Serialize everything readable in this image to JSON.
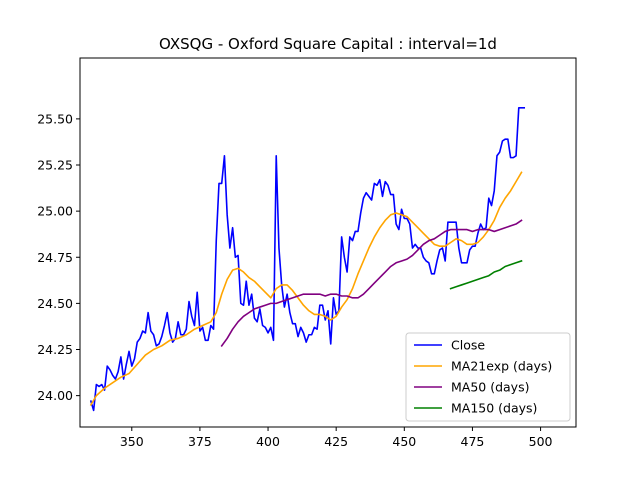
{
  "chart_data": {
    "type": "line",
    "title": "OXSQG - Oxford Square Capital : interval=1d",
    "xlabel": "",
    "ylabel": "",
    "xlim": [
      331,
      513
    ],
    "ylim": [
      23.83,
      25.83
    ],
    "xticks": [
      350,
      375,
      400,
      425,
      450,
      475,
      500
    ],
    "yticks": [
      24.0,
      24.25,
      24.5,
      24.75,
      25.0,
      25.25,
      25.5
    ],
    "ytick_labels": [
      "24.00",
      "24.25",
      "24.50",
      "24.75",
      "25.00",
      "25.25",
      "25.50"
    ],
    "grid": false,
    "legend_position": "lower-right",
    "series": [
      {
        "name": "Close",
        "color": "#0000ff",
        "points": [
          [
            335,
            23.97
          ],
          [
            336,
            23.92
          ],
          [
            337,
            24.06
          ],
          [
            338,
            24.05
          ],
          [
            339,
            24.06
          ],
          [
            340,
            24.03
          ],
          [
            341,
            24.16
          ],
          [
            342,
            24.14
          ],
          [
            343,
            24.11
          ],
          [
            344,
            24.09
          ],
          [
            345,
            24.13
          ],
          [
            346,
            24.21
          ],
          [
            347,
            24.09
          ],
          [
            348,
            24.17
          ],
          [
            349,
            24.24
          ],
          [
            350,
            24.16
          ],
          [
            351,
            24.2
          ],
          [
            352,
            24.29
          ],
          [
            353,
            24.31
          ],
          [
            354,
            24.35
          ],
          [
            355,
            24.34
          ],
          [
            356,
            24.45
          ],
          [
            357,
            24.35
          ],
          [
            358,
            24.33
          ],
          [
            359,
            24.27
          ],
          [
            360,
            24.28
          ],
          [
            361,
            24.32
          ],
          [
            362,
            24.38
          ],
          [
            363,
            24.45
          ],
          [
            364,
            24.34
          ],
          [
            365,
            24.29
          ],
          [
            366,
            24.31
          ],
          [
            367,
            24.4
          ],
          [
            368,
            24.33
          ],
          [
            369,
            24.33
          ],
          [
            370,
            24.36
          ],
          [
            371,
            24.51
          ],
          [
            372,
            24.43
          ],
          [
            373,
            24.38
          ],
          [
            374,
            24.56
          ],
          [
            375,
            24.35
          ],
          [
            376,
            24.37
          ],
          [
            377,
            24.3
          ],
          [
            378,
            24.3
          ],
          [
            379,
            24.38
          ],
          [
            380,
            24.36
          ],
          [
            381,
            24.84
          ],
          [
            382,
            25.15
          ],
          [
            383,
            25.15
          ],
          [
            384,
            25.3
          ],
          [
            385,
            24.98
          ],
          [
            386,
            24.8
          ],
          [
            387,
            24.91
          ],
          [
            388,
            24.75
          ],
          [
            389,
            24.76
          ],
          [
            390,
            24.5
          ],
          [
            391,
            24.49
          ],
          [
            392,
            24.62
          ],
          [
            393,
            24.49
          ],
          [
            394,
            24.55
          ],
          [
            395,
            24.42
          ],
          [
            396,
            24.4
          ],
          [
            397,
            24.47
          ],
          [
            398,
            24.38
          ],
          [
            399,
            24.37
          ],
          [
            400,
            24.34
          ],
          [
            401,
            24.37
          ],
          [
            402,
            24.3
          ],
          [
            403,
            25.3
          ],
          [
            404,
            24.8
          ],
          [
            405,
            24.6
          ],
          [
            406,
            24.48
          ],
          [
            407,
            24.55
          ],
          [
            408,
            24.45
          ],
          [
            409,
            24.39
          ],
          [
            410,
            24.39
          ],
          [
            411,
            24.32
          ],
          [
            412,
            24.37
          ],
          [
            413,
            24.34
          ],
          [
            414,
            24.29
          ],
          [
            415,
            24.33
          ],
          [
            416,
            24.33
          ],
          [
            417,
            24.37
          ],
          [
            418,
            24.36
          ],
          [
            419,
            24.49
          ],
          [
            420,
            24.49
          ],
          [
            421,
            24.41
          ],
          [
            422,
            24.46
          ],
          [
            423,
            24.28
          ],
          [
            424,
            24.53
          ],
          [
            425,
            24.44
          ],
          [
            426,
            24.46
          ],
          [
            427,
            24.86
          ],
          [
            428,
            24.75
          ],
          [
            429,
            24.67
          ],
          [
            430,
            24.86
          ],
          [
            431,
            24.84
          ],
          [
            432,
            24.89
          ],
          [
            433,
            24.89
          ],
          [
            434,
            24.99
          ],
          [
            435,
            25.07
          ],
          [
            436,
            25.1
          ],
          [
            437,
            25.08
          ],
          [
            438,
            25.06
          ],
          [
            439,
            25.15
          ],
          [
            440,
            25.14
          ],
          [
            441,
            25.17
          ],
          [
            442,
            25.08
          ],
          [
            443,
            25.16
          ],
          [
            444,
            25.14
          ],
          [
            445,
            25.09
          ],
          [
            446,
            25.09
          ],
          [
            447,
            24.93
          ],
          [
            448,
            24.9
          ],
          [
            449,
            25.01
          ],
          [
            450,
            24.96
          ],
          [
            451,
            24.96
          ],
          [
            452,
            24.93
          ],
          [
            453,
            24.8
          ],
          [
            454,
            24.82
          ],
          [
            455,
            24.8
          ],
          [
            456,
            24.8
          ],
          [
            457,
            24.75
          ],
          [
            458,
            24.73
          ],
          [
            459,
            24.72
          ],
          [
            460,
            24.66
          ],
          [
            461,
            24.66
          ],
          [
            462,
            24.73
          ],
          [
            463,
            24.79
          ],
          [
            464,
            24.8
          ],
          [
            465,
            24.73
          ],
          [
            466,
            24.94
          ],
          [
            467,
            24.94
          ],
          [
            468,
            24.94
          ],
          [
            469,
            24.94
          ],
          [
            470,
            24.8
          ],
          [
            471,
            24.72
          ],
          [
            472,
            24.72
          ],
          [
            473,
            24.72
          ],
          [
            474,
            24.79
          ],
          [
            475,
            24.81
          ],
          [
            476,
            24.81
          ],
          [
            477,
            24.88
          ],
          [
            478,
            24.93
          ],
          [
            479,
            24.9
          ],
          [
            480,
            24.91
          ],
          [
            481,
            25.07
          ],
          [
            482,
            25.03
          ],
          [
            483,
            25.11
          ],
          [
            484,
            25.3
          ],
          [
            485,
            25.32
          ],
          [
            486,
            25.38
          ],
          [
            487,
            25.39
          ],
          [
            488,
            25.39
          ],
          [
            489,
            25.29
          ],
          [
            490,
            25.29
          ],
          [
            491,
            25.3
          ],
          [
            492,
            25.56
          ],
          [
            493,
            25.56
          ],
          [
            494,
            25.56
          ]
        ]
      },
      {
        "name": "MA21exp (days)",
        "color": "#ffa500",
        "points": [
          [
            335,
            23.95
          ],
          [
            337,
            24.0
          ],
          [
            340,
            24.04
          ],
          [
            343,
            24.07
          ],
          [
            346,
            24.1
          ],
          [
            349,
            24.12
          ],
          [
            352,
            24.17
          ],
          [
            355,
            24.22
          ],
          [
            358,
            24.25
          ],
          [
            361,
            24.27
          ],
          [
            364,
            24.3
          ],
          [
            367,
            24.31
          ],
          [
            370,
            24.33
          ],
          [
            373,
            24.36
          ],
          [
            376,
            24.38
          ],
          [
            379,
            24.4
          ],
          [
            381,
            24.45
          ],
          [
            383,
            24.55
          ],
          [
            385,
            24.63
          ],
          [
            387,
            24.68
          ],
          [
            389,
            24.69
          ],
          [
            391,
            24.67
          ],
          [
            393,
            24.64
          ],
          [
            395,
            24.62
          ],
          [
            397,
            24.59
          ],
          [
            399,
            24.56
          ],
          [
            401,
            24.53
          ],
          [
            403,
            24.58
          ],
          [
            405,
            24.6
          ],
          [
            407,
            24.6
          ],
          [
            409,
            24.57
          ],
          [
            411,
            24.53
          ],
          [
            413,
            24.49
          ],
          [
            415,
            24.46
          ],
          [
            417,
            24.44
          ],
          [
            419,
            24.44
          ],
          [
            421,
            24.43
          ],
          [
            423,
            24.41
          ],
          [
            425,
            24.43
          ],
          [
            427,
            24.48
          ],
          [
            429,
            24.52
          ],
          [
            431,
            24.58
          ],
          [
            433,
            24.66
          ],
          [
            435,
            24.73
          ],
          [
            437,
            24.8
          ],
          [
            439,
            24.86
          ],
          [
            441,
            24.91
          ],
          [
            443,
            24.95
          ],
          [
            445,
            24.98
          ],
          [
            447,
            24.99
          ],
          [
            449,
            24.98
          ],
          [
            451,
            24.97
          ],
          [
            453,
            24.94
          ],
          [
            455,
            24.91
          ],
          [
            457,
            24.88
          ],
          [
            459,
            24.85
          ],
          [
            461,
            24.82
          ],
          [
            463,
            24.81
          ],
          [
            465,
            24.81
          ],
          [
            467,
            24.83
          ],
          [
            469,
            24.85
          ],
          [
            471,
            24.84
          ],
          [
            473,
            24.82
          ],
          [
            475,
            24.82
          ],
          [
            477,
            24.83
          ],
          [
            479,
            24.86
          ],
          [
            481,
            24.9
          ],
          [
            483,
            24.95
          ],
          [
            485,
            25.02
          ],
          [
            487,
            25.07
          ],
          [
            489,
            25.11
          ],
          [
            491,
            25.16
          ],
          [
            493,
            25.21
          ]
        ]
      },
      {
        "name": "MA50 (days)",
        "color": "#800080",
        "points": [
          [
            383,
            24.27
          ],
          [
            385,
            24.31
          ],
          [
            387,
            24.36
          ],
          [
            389,
            24.4
          ],
          [
            391,
            24.43
          ],
          [
            393,
            24.45
          ],
          [
            395,
            24.47
          ],
          [
            397,
            24.48
          ],
          [
            399,
            24.49
          ],
          [
            401,
            24.5
          ],
          [
            403,
            24.5
          ],
          [
            405,
            24.51
          ],
          [
            407,
            24.52
          ],
          [
            409,
            24.53
          ],
          [
            411,
            24.54
          ],
          [
            413,
            24.55
          ],
          [
            415,
            24.55
          ],
          [
            417,
            24.55
          ],
          [
            419,
            24.55
          ],
          [
            421,
            24.54
          ],
          [
            423,
            24.55
          ],
          [
            425,
            24.55
          ],
          [
            427,
            24.54
          ],
          [
            429,
            24.54
          ],
          [
            431,
            24.53
          ],
          [
            433,
            24.53
          ],
          [
            435,
            24.55
          ],
          [
            437,
            24.58
          ],
          [
            439,
            24.61
          ],
          [
            441,
            24.64
          ],
          [
            443,
            24.67
          ],
          [
            445,
            24.7
          ],
          [
            447,
            24.72
          ],
          [
            449,
            24.73
          ],
          [
            451,
            24.74
          ],
          [
            453,
            24.76
          ],
          [
            455,
            24.79
          ],
          [
            457,
            24.82
          ],
          [
            459,
            24.84
          ],
          [
            461,
            24.85
          ],
          [
            463,
            24.87
          ],
          [
            465,
            24.89
          ],
          [
            467,
            24.9
          ],
          [
            469,
            24.9
          ],
          [
            471,
            24.9
          ],
          [
            473,
            24.9
          ],
          [
            475,
            24.89
          ],
          [
            477,
            24.9
          ],
          [
            479,
            24.9
          ],
          [
            481,
            24.9
          ],
          [
            483,
            24.89
          ],
          [
            485,
            24.9
          ],
          [
            487,
            24.91
          ],
          [
            489,
            24.92
          ],
          [
            491,
            24.93
          ],
          [
            493,
            24.95
          ]
        ]
      },
      {
        "name": "MA150 (days)",
        "color": "#008000",
        "points": [
          [
            467,
            24.58
          ],
          [
            469,
            24.59
          ],
          [
            471,
            24.6
          ],
          [
            473,
            24.61
          ],
          [
            475,
            24.62
          ],
          [
            477,
            24.63
          ],
          [
            479,
            24.64
          ],
          [
            481,
            24.65
          ],
          [
            483,
            24.67
          ],
          [
            485,
            24.68
          ],
          [
            487,
            24.7
          ],
          [
            489,
            24.71
          ],
          [
            491,
            24.72
          ],
          [
            493,
            24.73
          ]
        ]
      }
    ]
  }
}
